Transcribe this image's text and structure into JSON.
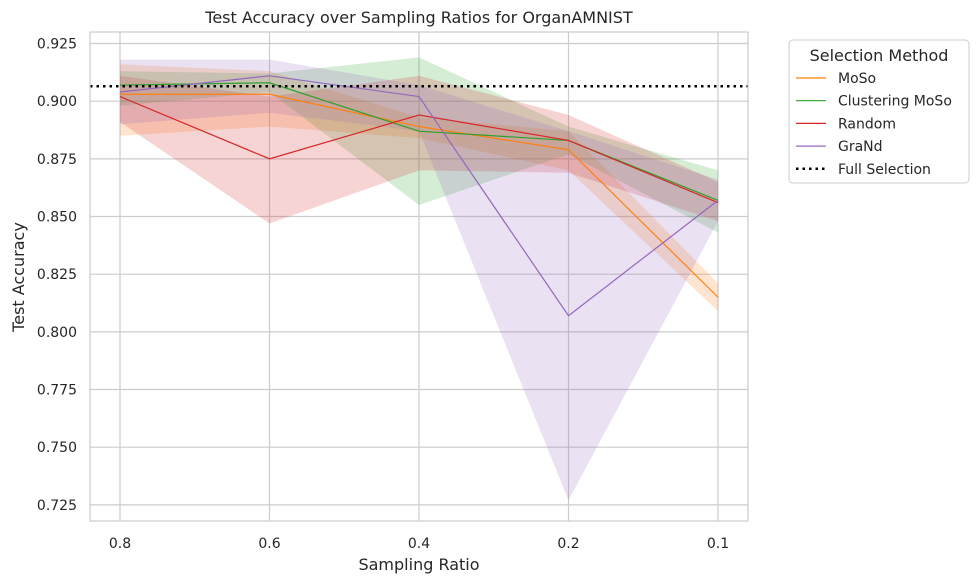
{
  "chart_data": {
    "type": "line",
    "title": "Test Accuracy over Sampling Ratios for OrganAMNIST",
    "xlabel": "Sampling Ratio",
    "ylabel": "Test Accuracy",
    "x": [
      "0.8",
      "0.6",
      "0.4",
      "0.2",
      "0.1"
    ],
    "x_tick_labels": [
      "0.8",
      "0.6",
      "0.4",
      "0.2",
      "0.1"
    ],
    "ylim": [
      0.718,
      0.93
    ],
    "y_ticks": [
      0.725,
      0.75,
      0.775,
      0.8,
      0.825,
      0.85,
      0.875,
      0.9,
      0.925
    ],
    "y_tick_labels": [
      "0.725",
      "0.750",
      "0.775",
      "0.800",
      "0.825",
      "0.850",
      "0.875",
      "0.900",
      "0.925"
    ],
    "grid": true,
    "legend": {
      "title": "Selection Method",
      "placement": "outside-top-right"
    },
    "series": [
      {
        "name": "MoSo",
        "color": "#ff7f0e",
        "values": [
          0.903,
          0.903,
          0.889,
          0.879,
          0.815
        ],
        "lower": [
          0.885,
          0.889,
          0.884,
          0.87,
          0.809
        ],
        "upper": [
          0.916,
          0.913,
          0.893,
          0.887,
          0.821
        ]
      },
      {
        "name": "Clustering MoSo",
        "color": "#2ca02c",
        "values": [
          0.907,
          0.908,
          0.887,
          0.883,
          0.857
        ],
        "lower": [
          0.898,
          0.904,
          0.855,
          0.877,
          0.843
        ],
        "upper": [
          0.913,
          0.912,
          0.919,
          0.889,
          0.87
        ]
      },
      {
        "name": "Random",
        "color": "#d62728",
        "values": [
          0.902,
          0.875,
          0.894,
          0.883,
          0.856
        ],
        "lower": [
          0.891,
          0.847,
          0.87,
          0.869,
          0.848
        ],
        "upper": [
          0.911,
          0.902,
          0.911,
          0.894,
          0.865
        ]
      },
      {
        "name": "GraNd",
        "color": "#9467bd",
        "values": [
          0.904,
          0.911,
          0.902,
          0.807,
          0.857
        ],
        "lower": [
          0.89,
          0.895,
          0.887,
          0.727,
          0.848
        ],
        "upper": [
          0.918,
          0.918,
          0.907,
          0.887,
          0.866
        ]
      }
    ],
    "reference_line": {
      "name": "Full Selection",
      "value": 0.9065,
      "color": "#000000",
      "style": "dotted"
    }
  }
}
